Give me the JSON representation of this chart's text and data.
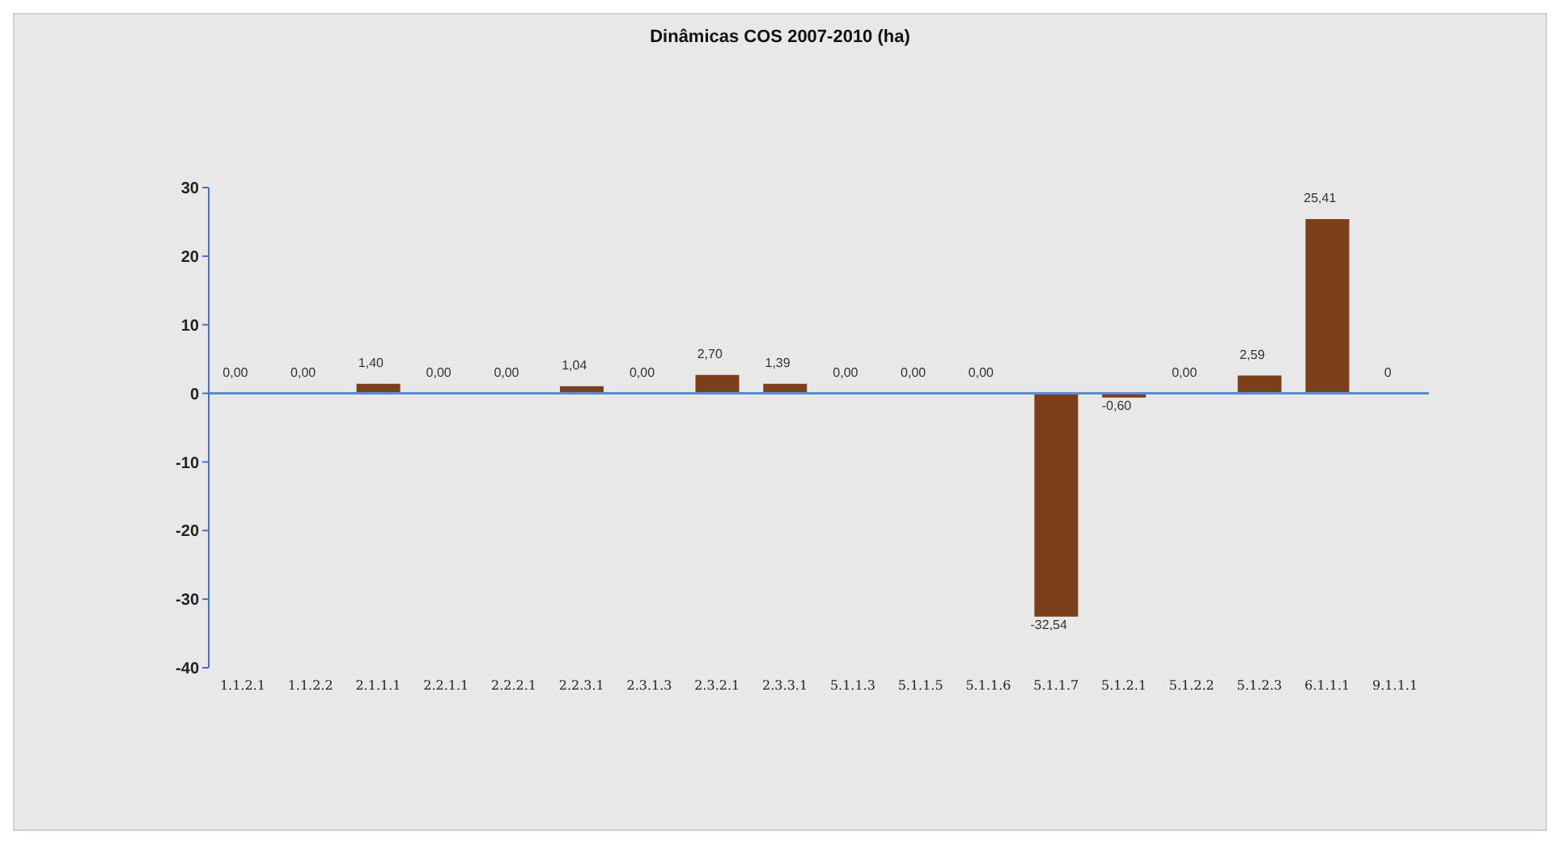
{
  "chart_data": {
    "type": "bar",
    "title": "Dinâmicas COS 2007-2010 (ha)",
    "categories": [
      "1.1.2.1",
      "1.1.2.2",
      "2.1.1.1",
      "2.2.1.1",
      "2.2.2.1",
      "2.2.3.1",
      "2.3.1.3",
      "2.3.2.1",
      "2.3.3.1",
      "5.1.1.3",
      "5.1.1.5",
      "5.1.1.6",
      "5.1.1.7",
      "5.1.2.1",
      "5.1.2.2",
      "5.1.2.3",
      "6.1.1.1",
      "9.1.1.1"
    ],
    "values": [
      0,
      0,
      1.4,
      0,
      0,
      1.04,
      0,
      2.7,
      1.39,
      0,
      0,
      0,
      -32.54,
      -0.6,
      0,
      2.59,
      25.41,
      0
    ],
    "value_labels": [
      "0,00",
      "0,00",
      "1,40",
      "0,00",
      "0,00",
      "1,04",
      "0,00",
      "2,70",
      "1,39",
      "0,00",
      "0,00",
      "0,00",
      "-32,54",
      "-0,60",
      "0,00",
      "2,59",
      "25,41",
      "0"
    ],
    "color": "#7b3f1c",
    "ylim": [
      -40,
      30
    ],
    "yticks": [
      -40,
      -30,
      -20,
      -10,
      0,
      10,
      20,
      30
    ],
    "ref_lines": [
      {
        "axis": "y",
        "value": 0,
        "color": "#5b8bd8"
      }
    ],
    "grid": false,
    "legend": false
  }
}
